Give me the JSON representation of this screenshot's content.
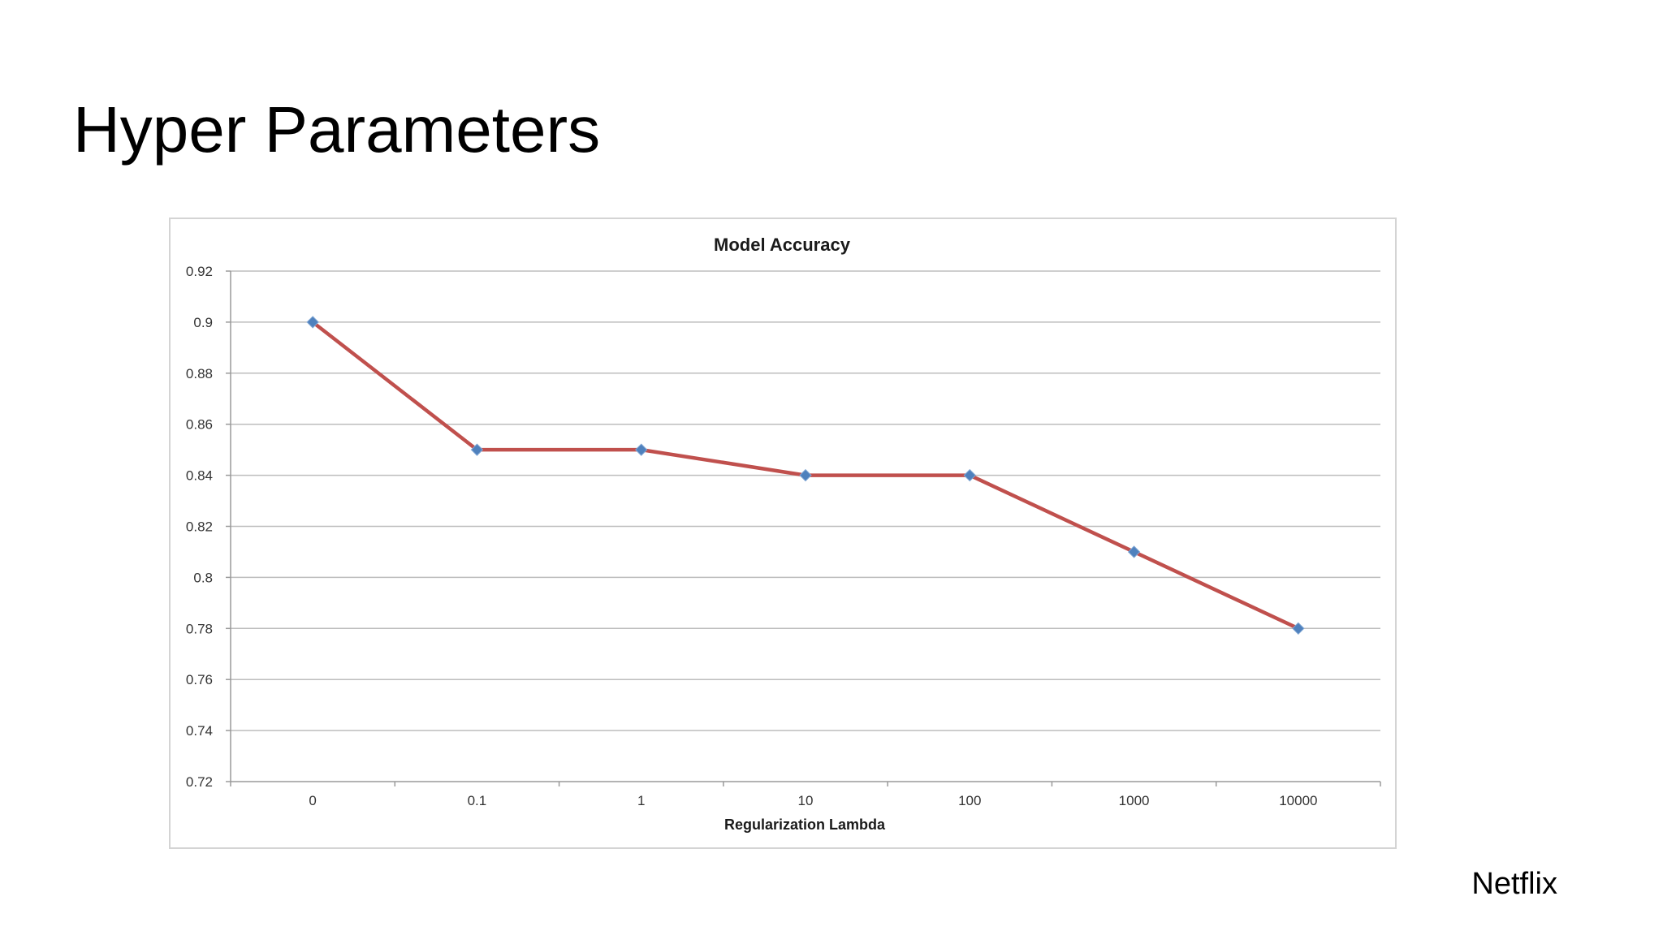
{
  "slide": {
    "title": "Hyper Parameters",
    "footer": "Netflix"
  },
  "chart_data": {
    "type": "line",
    "title": "Model Accuracy",
    "xlabel": "Regularization Lambda",
    "ylabel": "",
    "categories": [
      "0",
      "0.1",
      "1",
      "10",
      "100",
      "1000",
      "10000"
    ],
    "series": [
      {
        "values": [
          0.9,
          0.85,
          0.85,
          0.84,
          0.84,
          0.81,
          0.78
        ],
        "line_color": "#c0504d",
        "marker_color": "#4f81bd",
        "marker": "diamond"
      }
    ],
    "ylim": [
      0.72,
      0.92
    ],
    "yticks": [
      "0.72",
      "0.74",
      "0.76",
      "0.78",
      "0.8",
      "0.82",
      "0.84",
      "0.86",
      "0.88",
      "0.9",
      "0.92"
    ],
    "grid": true,
    "legend": "none"
  }
}
